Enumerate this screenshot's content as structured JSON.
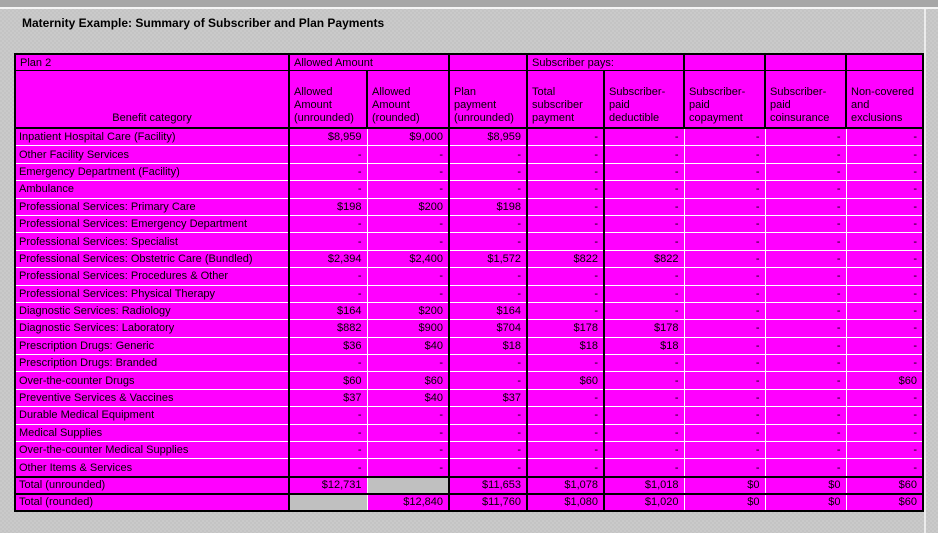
{
  "page": {
    "title": "Maternity Example: Summary of Subscriber and Plan Payments"
  },
  "colors": {
    "cell_magenta": "#FF00FF",
    "total_blank_gray": "#C0C0C0",
    "desktop_gray": "#C4C4C4",
    "grid_white": "#FFFFFF",
    "border_black": "#000000"
  },
  "table": {
    "groups": {
      "plan": "Plan 2",
      "allowed_amount": "Allowed Amount",
      "subscriber_pays": "Subscriber pays:"
    },
    "benefit_header": "Benefit category",
    "columns": [
      {
        "label": "Allowed\nAmount\n(unrounded)"
      },
      {
        "label": "Allowed\nAmount\n(rounded)"
      },
      {
        "label": "Plan\npayment\n(unrounded)"
      },
      {
        "label": "Total\nsubscriber\npayment"
      },
      {
        "label": "Subscriber-\npaid\ndeductible"
      },
      {
        "label": "Subscriber-\npaid\ncopayment"
      },
      {
        "label": "Subscriber-\npaid\ncoinsurance"
      },
      {
        "label": "Non-covered\nand\nexclusions"
      }
    ],
    "rows": [
      {
        "category": "Inpatient Hospital Care (Facility)",
        "values": [
          "$8,959",
          "$9,000",
          "$8,959",
          "-",
          "-",
          "-",
          "-",
          "-"
        ]
      },
      {
        "category": "Other Facility Services",
        "values": [
          "-",
          "-",
          "-",
          "-",
          "-",
          "-",
          "-",
          "-"
        ]
      },
      {
        "category": "Emergency Department (Facility)",
        "values": [
          "-",
          "-",
          "-",
          "-",
          "-",
          "-",
          "-",
          "-"
        ]
      },
      {
        "category": "Ambulance",
        "values": [
          "-",
          "-",
          "-",
          "-",
          "-",
          "-",
          "-",
          "-"
        ]
      },
      {
        "category": "Professional Services: Primary Care",
        "values": [
          "$198",
          "$200",
          "$198",
          "-",
          "-",
          "-",
          "-",
          "-"
        ]
      },
      {
        "category": "Professional Services: Emergency Department",
        "values": [
          "-",
          "-",
          "-",
          "-",
          "-",
          "-",
          "-",
          "-"
        ]
      },
      {
        "category": "Professional Services: Specialist",
        "values": [
          "-",
          "-",
          "-",
          "-",
          "-",
          "-",
          "-",
          "-"
        ]
      },
      {
        "category": "Professional Services: Obstetric Care (Bundled)",
        "values": [
          "$2,394",
          "$2,400",
          "$1,572",
          "$822",
          "$822",
          "-",
          "-",
          "-"
        ]
      },
      {
        "category": "Professional Services: Procedures & Other",
        "values": [
          "-",
          "-",
          "-",
          "-",
          "-",
          "-",
          "-",
          "-"
        ]
      },
      {
        "category": "Professional Services: Physical Therapy",
        "values": [
          "-",
          "-",
          "-",
          "-",
          "-",
          "-",
          "-",
          "-"
        ]
      },
      {
        "category": "Diagnostic Services: Radiology",
        "values": [
          "$164",
          "$200",
          "$164",
          "-",
          "-",
          "-",
          "-",
          "-"
        ]
      },
      {
        "category": "Diagnostic Services: Laboratory",
        "values": [
          "$882",
          "$900",
          "$704",
          "$178",
          "$178",
          "-",
          "-",
          "-"
        ]
      },
      {
        "category": "Prescription Drugs: Generic",
        "values": [
          "$36",
          "$40",
          "$18",
          "$18",
          "$18",
          "-",
          "-",
          "-"
        ]
      },
      {
        "category": "Prescription Drugs: Branded",
        "values": [
          "-",
          "-",
          "-",
          "-",
          "-",
          "-",
          "-",
          "-"
        ]
      },
      {
        "category": "Over-the-counter Drugs",
        "values": [
          "$60",
          "$60",
          "-",
          "$60",
          "-",
          "-",
          "-",
          "$60"
        ]
      },
      {
        "category": "Preventive Services & Vaccines",
        "values": [
          "$37",
          "$40",
          "$37",
          "-",
          "-",
          "-",
          "-",
          "-"
        ]
      },
      {
        "category": "Durable Medical Equipment",
        "values": [
          "-",
          "-",
          "-",
          "-",
          "-",
          "-",
          "-",
          "-"
        ]
      },
      {
        "category": "Medical Supplies",
        "values": [
          "-",
          "-",
          "-",
          "-",
          "-",
          "-",
          "-",
          "-"
        ]
      },
      {
        "category": "Over-the-counter Medical Supplies",
        "values": [
          "-",
          "-",
          "-",
          "-",
          "-",
          "-",
          "-",
          "-"
        ]
      },
      {
        "category": "Other Items & Services",
        "values": [
          "-",
          "-",
          "-",
          "-",
          "-",
          "-",
          "-",
          "-"
        ]
      }
    ],
    "totals": [
      {
        "label": "Total (unrounded)",
        "values": [
          "$12,731",
          null,
          "$11,653",
          "$1,078",
          "$1,018",
          "$0",
          "$0",
          "$60"
        ]
      },
      {
        "label": "Total (rounded)",
        "values": [
          null,
          "$12,840",
          "$11,760",
          "$1,080",
          "$1,020",
          "$0",
          "$0",
          "$60"
        ]
      }
    ]
  }
}
